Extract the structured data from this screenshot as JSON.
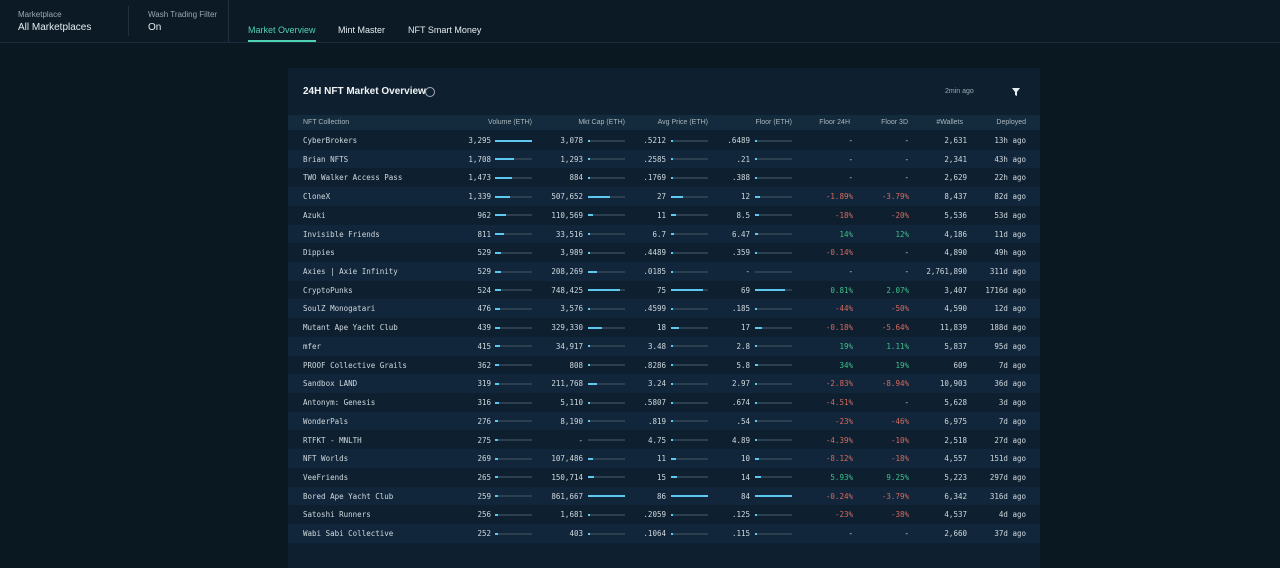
{
  "header": {
    "marketplace_label": "Marketplace",
    "marketplace_value": "All Marketplaces",
    "wash_label": "Wash Trading Filter",
    "wash_value": "On"
  },
  "tabs": [
    "Market Overview",
    "Mint Master",
    "NFT Smart Money"
  ],
  "panel": {
    "title": "24H NFT Market Overview",
    "updated": "2min ago"
  },
  "table": {
    "columns": [
      "NFT Collection",
      "Volume (ETH)",
      "Mkt Cap (ETH)",
      "Avg Price (ETH)",
      "Floor (ETH)",
      "Floor 24H",
      "Floor 3D",
      "#Wallets",
      "Deployed"
    ],
    "rows": [
      [
        "CyberBrokers",
        "3,295",
        "3,078",
        ".5212",
        ".6489",
        "-",
        "-",
        "2,631",
        "13h ago"
      ],
      [
        "Brian NFTS",
        "1,708",
        "1,293",
        ".2585",
        ".21",
        "-",
        "-",
        "2,341",
        "43h ago"
      ],
      [
        "TWO Walker Access Pass",
        "1,473",
        "884",
        ".1769",
        ".388",
        "-",
        "-",
        "2,629",
        "22h ago"
      ],
      [
        "CloneX",
        "1,339",
        "507,652",
        "27",
        "12",
        "-1.89%",
        "-3.79%",
        "8,437",
        "82d ago"
      ],
      [
        "Azuki",
        "962",
        "110,569",
        "11",
        "8.5",
        "-18%",
        "-20%",
        "5,536",
        "53d ago"
      ],
      [
        "Invisible Friends",
        "811",
        "33,516",
        "6.7",
        "6.47",
        "14%",
        "12%",
        "4,186",
        "11d ago"
      ],
      [
        "Dippies",
        "529",
        "3,989",
        ".4489",
        ".359",
        "-0.14%",
        "-",
        "4,890",
        "49h ago"
      ],
      [
        "Axies | Axie Infinity",
        "529",
        "208,269",
        ".0185",
        "-",
        "-",
        "-",
        "2,761,890",
        "311d ago"
      ],
      [
        "CryptoPunks",
        "524",
        "748,425",
        "75",
        "69",
        "0.81%",
        "2.07%",
        "3,407",
        "1716d ago"
      ],
      [
        "SoulZ Monogatari",
        "476",
        "3,576",
        ".4599",
        ".185",
        "-44%",
        "-50%",
        "4,590",
        "12d ago"
      ],
      [
        "Mutant Ape Yacht Club",
        "439",
        "329,330",
        "18",
        "17",
        "-0.18%",
        "-5.64%",
        "11,839",
        "188d ago"
      ],
      [
        "mfer",
        "415",
        "34,917",
        "3.48",
        "2.8",
        "19%",
        "1.11%",
        "5,837",
        "95d ago"
      ],
      [
        "PROOF Collective Grails",
        "362",
        "808",
        ".8286",
        "5.8",
        "34%",
        "19%",
        "609",
        "7d ago"
      ],
      [
        "Sandbox LAND",
        "319",
        "211,768",
        "3.24",
        "2.97",
        "-2.83%",
        "-8.94%",
        "10,903",
        "36d ago"
      ],
      [
        "Antonym: Genesis",
        "316",
        "5,110",
        ".5807",
        ".674",
        "-4.51%",
        "-",
        "5,628",
        "3d ago"
      ],
      [
        "WonderPals",
        "276",
        "8,190",
        ".819",
        ".54",
        "-23%",
        "-46%",
        "6,975",
        "7d ago"
      ],
      [
        "RTFKT - MNLTH",
        "275",
        "-",
        "4.75",
        "4.89",
        "-4.39%",
        "-10%",
        "2,518",
        "27d ago"
      ],
      [
        "NFT Worlds",
        "269",
        "107,486",
        "11",
        "10",
        "-8.12%",
        "-18%",
        "4,557",
        "151d ago"
      ],
      [
        "VeeFriends",
        "265",
        "150,714",
        "15",
        "14",
        "5.93%",
        "9.25%",
        "5,223",
        "297d ago"
      ],
      [
        "Bored Ape Yacht Club",
        "259",
        "861,667",
        "86",
        "84",
        "-0.24%",
        "-3.79%",
        "6,342",
        "316d ago"
      ],
      [
        "Satoshi Runners",
        "256",
        "1,681",
        ".2059",
        ".125",
        "-23%",
        "-38%",
        "4,537",
        "4d ago"
      ],
      [
        "Wabi Sabi Collective",
        "252",
        "403",
        ".1064",
        ".115",
        "-",
        "-",
        "2,660",
        "37d ago"
      ]
    ]
  }
}
